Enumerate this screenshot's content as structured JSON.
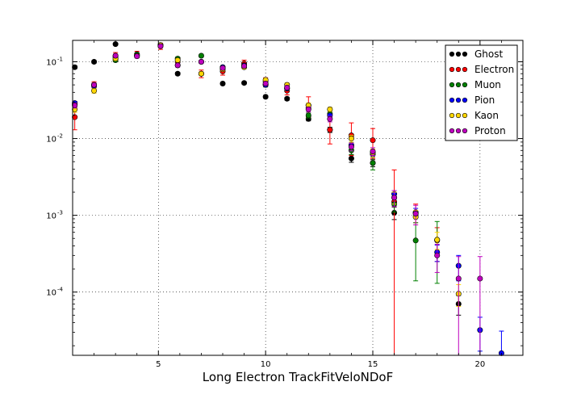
{
  "chart_data": {
    "type": "scatter",
    "title": "",
    "xlabel": "Long Electron TrackFitVeloNDoF",
    "ylabel": "",
    "xlim": [
      1,
      22
    ],
    "ylim": [
      1.5e-05,
      0.19
    ],
    "yscale": "log",
    "grid": true,
    "legend_position": "top-right",
    "x_ticks": [
      {
        "value": 5,
        "label": "5"
      },
      {
        "value": 10,
        "label": "10"
      },
      {
        "value": 15,
        "label": "15"
      },
      {
        "value": 20,
        "label": "20"
      }
    ],
    "y_ticks": [
      {
        "value": 0.0001,
        "mantissa": "10",
        "exponent": "-4"
      },
      {
        "value": 0.001,
        "mantissa": "10",
        "exponent": "-3"
      },
      {
        "value": 0.01,
        "mantissa": "10",
        "exponent": "-2"
      },
      {
        "value": 0.1,
        "mantissa": "10",
        "exponent": "-1"
      }
    ],
    "series": [
      {
        "name": "Ghost",
        "color": "#000000",
        "points": [
          {
            "x": 1.1,
            "y": 0.085,
            "err": 0.004
          },
          {
            "x": 2,
            "y": 0.1,
            "err": 0.004
          },
          {
            "x": 3,
            "y": 0.17,
            "err": 0.006
          },
          {
            "x": 4,
            "y": 0.12,
            "err": 0.005
          },
          {
            "x": 5.1,
            "y": 0.165,
            "err": 0.005
          },
          {
            "x": 5.9,
            "y": 0.07,
            "err": 0.003
          },
          {
            "x": 7,
            "y": 0.07,
            "err": 0.003
          },
          {
            "x": 8,
            "y": 0.052,
            "err": 0.002
          },
          {
            "x": 9,
            "y": 0.053,
            "err": 0.002
          },
          {
            "x": 10,
            "y": 0.035,
            "err": 0.0015
          },
          {
            "x": 11,
            "y": 0.033,
            "err": 0.0015
          },
          {
            "x": 12,
            "y": 0.018,
            "err": 0.001
          },
          {
            "x": 13,
            "y": 0.013,
            "err": 0.001
          },
          {
            "x": 14,
            "y": 0.0055,
            "err": 0.0006
          },
          {
            "x": 15,
            "y": 0.0048,
            "err": 0.0005
          },
          {
            "x": 16,
            "y": 0.00108,
            "err": 0.0002
          },
          {
            "x": 19,
            "y": 7e-05,
            "err": 2e-05
          }
        ]
      },
      {
        "name": "Electron",
        "color": "#ff0000",
        "points": [
          {
            "x": 1.1,
            "y": 0.019,
            "err": 0.006
          },
          {
            "x": 2,
            "y": 0.05,
            "err": 0.005
          },
          {
            "x": 3,
            "y": 0.12,
            "err": 0.012
          },
          {
            "x": 4,
            "y": 0.125,
            "err": 0.012
          },
          {
            "x": 5.1,
            "y": 0.16,
            "err": 0.015
          },
          {
            "x": 5.9,
            "y": 0.1,
            "err": 0.012
          },
          {
            "x": 7,
            "y": 0.07,
            "err": 0.008
          },
          {
            "x": 8,
            "y": 0.075,
            "err": 0.008
          },
          {
            "x": 9,
            "y": 0.095,
            "err": 0.01
          },
          {
            "x": 10,
            "y": 0.055,
            "err": 0.007
          },
          {
            "x": 11,
            "y": 0.042,
            "err": 0.005
          },
          {
            "x": 12,
            "y": 0.027,
            "err": 0.008
          },
          {
            "x": 13,
            "y": 0.013,
            "err": 0.0045
          },
          {
            "x": 14,
            "y": 0.011,
            "err": 0.005
          },
          {
            "x": 15,
            "y": 0.0095,
            "err": 0.004
          },
          {
            "x": 16,
            "y": 0.0015,
            "err": 0.0024
          },
          {
            "x": 17,
            "y": 0.0011,
            "err": 0.0003
          },
          {
            "x": 18,
            "y": 0.00047,
            "err": 0.00022
          }
        ]
      },
      {
        "name": "Muon",
        "color": "#008000",
        "points": [
          {
            "x": 1.1,
            "y": 0.028,
            "err": 0.002
          },
          {
            "x": 2,
            "y": 0.05,
            "err": 0.003
          },
          {
            "x": 3,
            "y": 0.105,
            "err": 0.005
          },
          {
            "x": 4,
            "y": 0.125,
            "err": 0.005
          },
          {
            "x": 5.1,
            "y": 0.165,
            "err": 0.006
          },
          {
            "x": 5.9,
            "y": 0.11,
            "err": 0.005
          },
          {
            "x": 7,
            "y": 0.12,
            "err": 0.005
          },
          {
            "x": 8,
            "y": 0.085,
            "err": 0.004
          },
          {
            "x": 9,
            "y": 0.09,
            "err": 0.004
          },
          {
            "x": 10,
            "y": 0.05,
            "err": 0.003
          },
          {
            "x": 11,
            "y": 0.045,
            "err": 0.003
          },
          {
            "x": 12,
            "y": 0.02,
            "err": 0.0015
          },
          {
            "x": 13,
            "y": 0.021,
            "err": 0.0015
          },
          {
            "x": 14,
            "y": 0.007,
            "err": 0.0008
          },
          {
            "x": 15,
            "y": 0.0048,
            "err": 0.0009
          },
          {
            "x": 16,
            "y": 0.0014,
            "err": 0.0003
          },
          {
            "x": 17,
            "y": 0.00047,
            "err": 0.00033
          },
          {
            "x": 18,
            "y": 0.00048,
            "err": 0.00035
          }
        ]
      },
      {
        "name": "Pion",
        "color": "#0000ff",
        "points": [
          {
            "x": 1.1,
            "y": 0.029,
            "err": 0.0015
          },
          {
            "x": 2,
            "y": 0.048,
            "err": 0.002
          },
          {
            "x": 3,
            "y": 0.115,
            "err": 0.004
          },
          {
            "x": 4,
            "y": 0.12,
            "err": 0.004
          },
          {
            "x": 5.1,
            "y": 0.165,
            "err": 0.005
          },
          {
            "x": 5.9,
            "y": 0.09,
            "err": 0.003
          },
          {
            "x": 7,
            "y": 0.1,
            "err": 0.003
          },
          {
            "x": 8,
            "y": 0.085,
            "err": 0.003
          },
          {
            "x": 9,
            "y": 0.09,
            "err": 0.003
          },
          {
            "x": 10,
            "y": 0.05,
            "err": 0.002
          },
          {
            "x": 11,
            "y": 0.045,
            "err": 0.002
          },
          {
            "x": 12,
            "y": 0.025,
            "err": 0.0012
          },
          {
            "x": 13,
            "y": 0.02,
            "err": 0.001
          },
          {
            "x": 14,
            "y": 0.0082,
            "err": 0.0006
          },
          {
            "x": 15,
            "y": 0.0062,
            "err": 0.0005
          },
          {
            "x": 16,
            "y": 0.0019,
            "err": 0.0002
          },
          {
            "x": 17,
            "y": 0.00108,
            "err": 0.00015
          },
          {
            "x": 18,
            "y": 0.00033,
            "err": 8e-05
          },
          {
            "x": 19,
            "y": 0.00022,
            "err": 8e-05
          },
          {
            "x": 20,
            "y": 3.2e-05,
            "err": 1.5e-05
          },
          {
            "x": 21,
            "y": 1.6e-05,
            "err": 1.5e-05
          }
        ]
      },
      {
        "name": "Kaon",
        "color": "#ffd700",
        "points": [
          {
            "x": 1.1,
            "y": 0.024,
            "err": 0.002
          },
          {
            "x": 2,
            "y": 0.042,
            "err": 0.003
          },
          {
            "x": 3,
            "y": 0.11,
            "err": 0.006
          },
          {
            "x": 4,
            "y": 0.12,
            "err": 0.006
          },
          {
            "x": 5.1,
            "y": 0.165,
            "err": 0.007
          },
          {
            "x": 5.9,
            "y": 0.105,
            "err": 0.005
          },
          {
            "x": 7,
            "y": 0.07,
            "err": 0.004
          },
          {
            "x": 8,
            "y": 0.08,
            "err": 0.004
          },
          {
            "x": 9,
            "y": 0.085,
            "err": 0.004
          },
          {
            "x": 10,
            "y": 0.058,
            "err": 0.003
          },
          {
            "x": 11,
            "y": 0.05,
            "err": 0.003
          },
          {
            "x": 12,
            "y": 0.027,
            "err": 0.002
          },
          {
            "x": 13,
            "y": 0.024,
            "err": 0.0015
          },
          {
            "x": 14,
            "y": 0.01,
            "err": 0.001
          },
          {
            "x": 15,
            "y": 0.0065,
            "err": 0.0008
          },
          {
            "x": 16,
            "y": 0.0017,
            "err": 0.0003
          },
          {
            "x": 17,
            "y": 0.00095,
            "err": 0.0002
          },
          {
            "x": 18,
            "y": 0.00048,
            "err": 0.00012
          },
          {
            "x": 19,
            "y": 9.5e-05,
            "err": 3e-05
          }
        ]
      },
      {
        "name": "Proton",
        "color": "#bf00bf",
        "points": [
          {
            "x": 1.1,
            "y": 0.027,
            "err": 0.002
          },
          {
            "x": 2,
            "y": 0.05,
            "err": 0.003
          },
          {
            "x": 3,
            "y": 0.12,
            "err": 0.006
          },
          {
            "x": 4,
            "y": 0.118,
            "err": 0.006
          },
          {
            "x": 5.1,
            "y": 0.16,
            "err": 0.007
          },
          {
            "x": 5.9,
            "y": 0.09,
            "err": 0.005
          },
          {
            "x": 7,
            "y": 0.1,
            "err": 0.005
          },
          {
            "x": 8,
            "y": 0.083,
            "err": 0.004
          },
          {
            "x": 9,
            "y": 0.088,
            "err": 0.004
          },
          {
            "x": 10,
            "y": 0.052,
            "err": 0.003
          },
          {
            "x": 11,
            "y": 0.046,
            "err": 0.003
          },
          {
            "x": 12,
            "y": 0.024,
            "err": 0.0018
          },
          {
            "x": 13,
            "y": 0.018,
            "err": 0.0015
          },
          {
            "x": 14,
            "y": 0.0078,
            "err": 0.0009
          },
          {
            "x": 15,
            "y": 0.0068,
            "err": 0.0008
          },
          {
            "x": 16,
            "y": 0.0017,
            "err": 0.0004
          },
          {
            "x": 17,
            "y": 0.00105,
            "err": 0.0003
          },
          {
            "x": 18,
            "y": 0.0003,
            "err": 0.00012
          },
          {
            "x": 19,
            "y": 0.00015,
            "err": 0.00014
          },
          {
            "x": 20,
            "y": 0.00015,
            "err": 0.00014
          }
        ]
      }
    ]
  }
}
